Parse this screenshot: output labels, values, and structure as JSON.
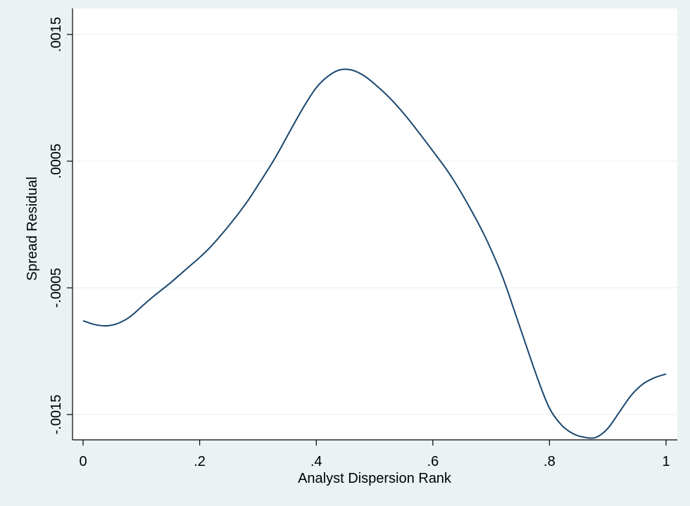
{
  "chart_data": {
    "type": "line",
    "title": "",
    "xlabel": "Analyst Dispersion Rank",
    "ylabel": "Spread Residual",
    "xlim": [
      0,
      1
    ],
    "ylim": [
      -0.0017,
      0.0017
    ],
    "x_ticks": [
      0,
      0.2,
      0.4,
      0.6,
      0.8,
      1
    ],
    "x_tick_labels": [
      "0",
      ".2",
      ".4",
      ".6",
      ".8",
      "1"
    ],
    "y_ticks": [
      0.0015,
      0.0005,
      -0.0005,
      -0.0015
    ],
    "y_tick_labels": [
      ".0015",
      ".0005",
      "-.0005",
      "-.0015"
    ],
    "grid": true,
    "legend": "none",
    "line_color": "#1a476f",
    "series": [
      {
        "x": [
          0,
          0.02,
          0.04,
          0.06,
          0.08,
          0.1,
          0.12,
          0.15,
          0.18,
          0.2,
          0.22,
          0.25,
          0.28,
          0.3,
          0.33,
          0.36,
          0.38,
          0.4,
          0.42,
          0.44,
          0.46,
          0.48,
          0.5,
          0.53,
          0.56,
          0.6,
          0.63,
          0.66,
          0.69,
          0.72,
          0.75,
          0.78,
          0.8,
          0.82,
          0.84,
          0.86,
          0.88,
          0.9,
          0.92,
          0.94,
          0.96,
          0.98,
          1.0
        ],
        "y": [
          -0.00076,
          -0.00079,
          -0.0008,
          -0.00078,
          -0.00073,
          -0.00065,
          -0.00057,
          -0.00046,
          -0.00034,
          -0.00026,
          -0.00017,
          -1e-05,
          0.00017,
          0.00031,
          0.00053,
          0.00078,
          0.00094,
          0.00108,
          0.00117,
          0.00122,
          0.00122,
          0.00118,
          0.00111,
          0.00098,
          0.00082,
          0.00058,
          0.00039,
          0.00016,
          -0.0001,
          -0.00042,
          -0.00082,
          -0.00122,
          -0.00145,
          -0.00158,
          -0.00165,
          -0.00168,
          -0.00168,
          -0.00161,
          -0.00148,
          -0.00135,
          -0.00126,
          -0.00121,
          -0.00118
        ]
      }
    ]
  }
}
